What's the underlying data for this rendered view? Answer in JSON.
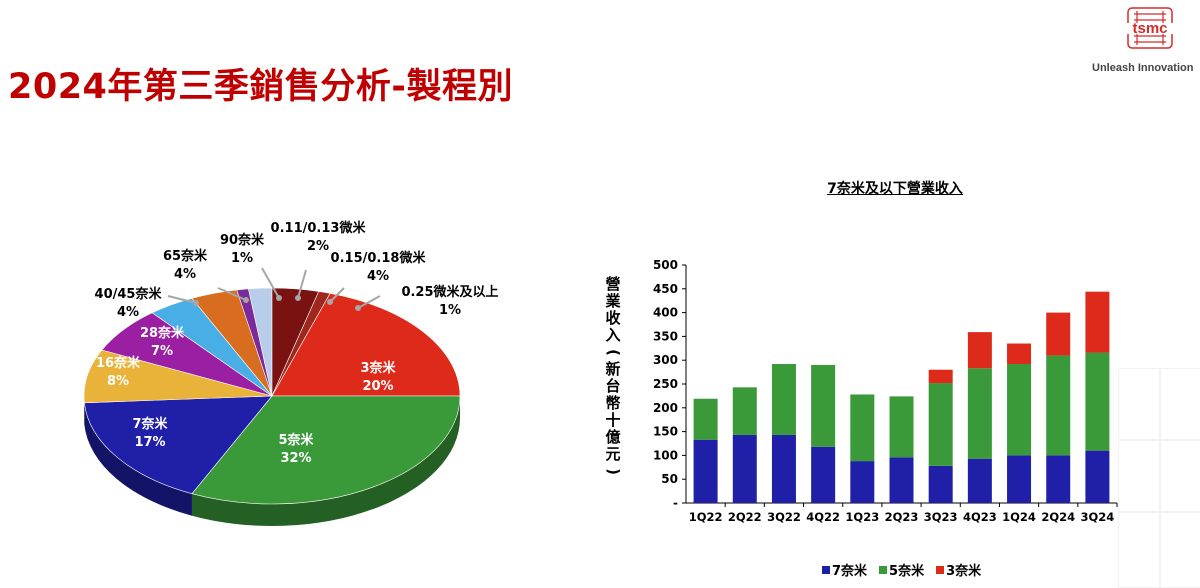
{
  "title": "2024年第三季銷售分析-製程別",
  "logo": {
    "text": "tsmc",
    "tagline": "Unleash Innovation"
  },
  "colors": {
    "title": "#c00000",
    "n7": "#1f1fa8",
    "n5": "#3a9a3a",
    "n3": "#dd2a1b"
  },
  "chart_data": [
    {
      "type": "pie",
      "title": "",
      "slices": [
        {
          "name": "3奈米",
          "value": 20,
          "label": "20%",
          "color": "#dd2a1b"
        },
        {
          "name": "5奈米",
          "value": 32,
          "label": "32%",
          "color": "#3a9a3a"
        },
        {
          "name": "7奈米",
          "value": 17,
          "label": "17%",
          "color": "#1f1fa8"
        },
        {
          "name": "16奈米",
          "value": 8,
          "label": "8%",
          "color": "#e9b33a"
        },
        {
          "name": "28奈米",
          "value": 7,
          "label": "7%",
          "color": "#9b1fa3"
        },
        {
          "name": "40/45奈米",
          "value": 4,
          "label": "4%",
          "color": "#4aaee6"
        },
        {
          "name": "65奈米",
          "value": 4,
          "label": "4%",
          "color": "#d86c1f"
        },
        {
          "name": "90奈米",
          "value": 1,
          "label": "1%",
          "color": "#7a2a9a"
        },
        {
          "name": "0.11/0.13微米",
          "value": 2,
          "label": "2%",
          "color": "#b7cdea"
        },
        {
          "name": "0.15/0.18微米",
          "value": 4,
          "label": "4%",
          "color": "#7a1212"
        },
        {
          "name": "0.25微米及以上",
          "value": 1,
          "label": "1%",
          "color": "#a0271e"
        }
      ]
    },
    {
      "type": "bar",
      "stacked": true,
      "title": "7奈米及以下營業收入",
      "ylabel": "營業收入(新台幣十億元)",
      "ylim": [
        0,
        500
      ],
      "yticks": [
        "-",
        "50",
        "100",
        "150",
        "200",
        "250",
        "300",
        "350",
        "400",
        "450",
        "500"
      ],
      "categories": [
        "1Q22",
        "2Q22",
        "3Q22",
        "4Q22",
        "1Q23",
        "2Q23",
        "3Q23",
        "4Q23",
        "1Q24",
        "2Q24",
        "3Q24"
      ],
      "series": [
        {
          "name": "7奈米",
          "color": "#1f1fa8",
          "values": [
            133,
            143,
            143,
            118,
            88,
            96,
            78,
            93,
            100,
            100,
            110
          ]
        },
        {
          "name": "5奈米",
          "color": "#3a9a3a",
          "values": [
            86,
            100,
            149,
            172,
            140,
            128,
            174,
            190,
            192,
            210,
            206
          ]
        },
        {
          "name": "3奈米",
          "color": "#dd2a1b",
          "values": [
            0,
            0,
            0,
            0,
            0,
            0,
            28,
            76,
            43,
            90,
            128
          ]
        }
      ]
    }
  ]
}
